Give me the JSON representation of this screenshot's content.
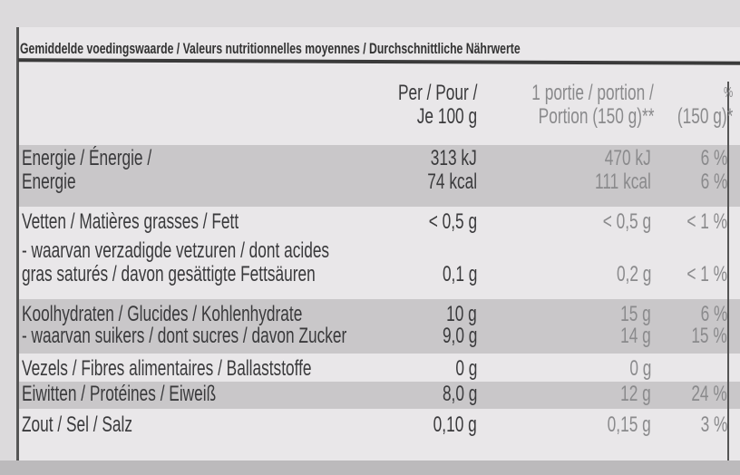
{
  "header": "Gemiddelde voedingswaarde / Valeurs nutritionnelles moyennes / Durchschnittliche Nährwerte",
  "columns": {
    "per100_line1": "Per / Pour /",
    "per100_line2": "Je 100 g",
    "portion_line1": "1 portie / portion /",
    "portion_line2": "Portion (150 g)**",
    "pct_line1": "%",
    "pct_line2": "(150 g)*"
  },
  "rows": [
    {
      "label": "Energie / Énergie /",
      "per100": "313 kJ",
      "portion": "470 kJ",
      "pct": "6 %"
    },
    {
      "label": "Energie",
      "per100": "74 kcal",
      "portion": "111 kcal",
      "pct": "6 %"
    },
    {
      "label": "Vetten / Matières grasses / Fett",
      "per100": "< 0,5 g",
      "portion": "< 0,5 g",
      "pct": "< 1 %"
    },
    {
      "label": "- waarvan verzadigde vetzuren / dont acides",
      "per100": "",
      "portion": "",
      "pct": ""
    },
    {
      "label": "gras saturés / davon gesättigte Fettsäuren",
      "per100": "0,1 g",
      "portion": "0,2 g",
      "pct": "< 1 %"
    },
    {
      "label": "Koolhydraten / Glucides / Kohlenhydrate",
      "per100": "10 g",
      "portion": "15 g",
      "pct": "6 %"
    },
    {
      "label": "- waarvan suikers / dont sucres / davon Zucker",
      "per100": "9,0 g",
      "portion": "14 g",
      "pct": "15 %"
    },
    {
      "label": "Vezels / Fibres alimentaires / Ballaststoffe",
      "per100": "0 g",
      "portion": "0 g",
      "pct": ""
    },
    {
      "label": "Eiwitten / Protéines / Eiweiß",
      "per100": "8,0 g",
      "portion": "12 g",
      "pct": "24 %"
    },
    {
      "label": "Zout / Sel / Salz",
      "per100": "0,10 g",
      "portion": "0,15 g",
      "pct": "3 %"
    }
  ],
  "colors": {
    "background": "#e9e7e9",
    "band": "#c9c7c9",
    "text": "#3a3a3c"
  }
}
